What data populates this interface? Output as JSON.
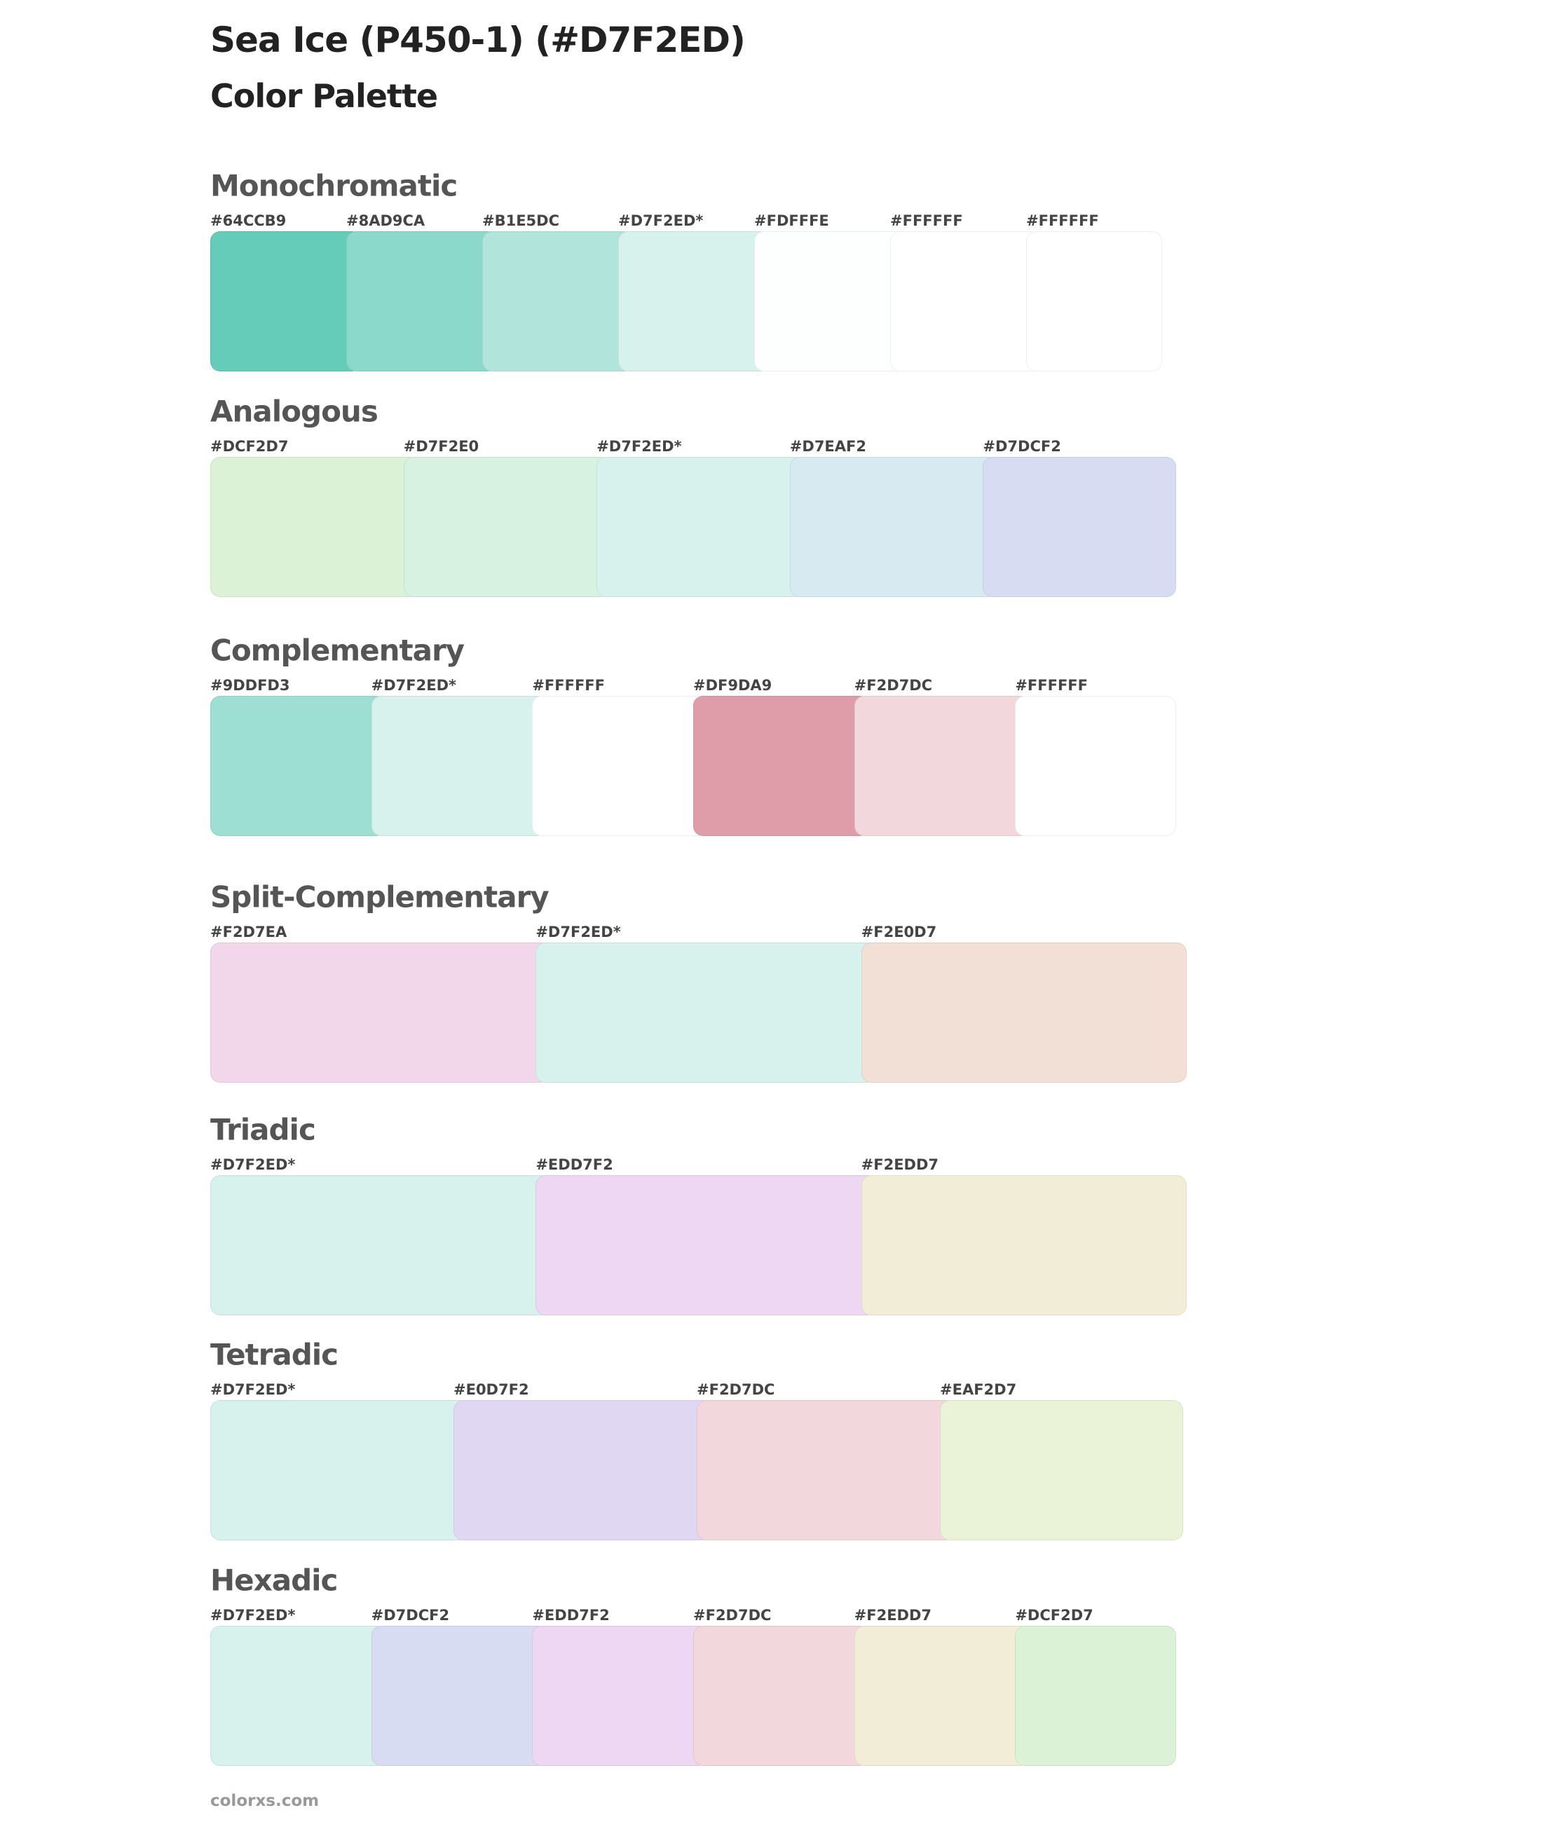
{
  "title": "Sea Ice (P450-1) (#D7F2ED)",
  "subtitle": "Color Palette",
  "sections": [
    {
      "name": "Monochromatic",
      "swatches": [
        {
          "label": "#64CCB9",
          "color": "#64CCB9"
        },
        {
          "label": "#8AD9CA",
          "color": "#8AD9CA"
        },
        {
          "label": "#B1E5DC",
          "color": "#B1E5DC"
        },
        {
          "label": "#D7F2ED*",
          "color": "#D7F2ED"
        },
        {
          "label": "#FDFFFE",
          "color": "#FDFFFE"
        },
        {
          "label": "#FFFFFF",
          "color": "#FFFFFF"
        },
        {
          "label": "#FFFFFF",
          "color": "#FFFFFF"
        }
      ]
    },
    {
      "name": "Analogous",
      "swatches": [
        {
          "label": "#DCF2D7",
          "color": "#DCF2D7"
        },
        {
          "label": "#D7F2E0",
          "color": "#D7F2E0"
        },
        {
          "label": "#D7F2ED*",
          "color": "#D7F2ED"
        },
        {
          "label": "#D7EAF2",
          "color": "#D7EAF2"
        },
        {
          "label": "#D7DCF2",
          "color": "#D7DCF2"
        }
      ]
    },
    {
      "name": "Complementary",
      "swatches": [
        {
          "label": "#9DDFD3",
          "color": "#9DDFD3"
        },
        {
          "label": "#D7F2ED*",
          "color": "#D7F2ED"
        },
        {
          "label": "#FFFFFF",
          "color": "#FFFFFF"
        },
        {
          "label": "#DF9DA9",
          "color": "#DF9DA9"
        },
        {
          "label": "#F2D7DC",
          "color": "#F2D7DC"
        },
        {
          "label": "#FFFFFF",
          "color": "#FFFFFF"
        }
      ]
    },
    {
      "name": "Split-Complementary",
      "swatches": [
        {
          "label": "#F2D7EA",
          "color": "#F2D7EA"
        },
        {
          "label": "#D7F2ED*",
          "color": "#D7F2ED"
        },
        {
          "label": "#F2E0D7",
          "color": "#F2E0D7"
        }
      ]
    },
    {
      "name": "Triadic",
      "swatches": [
        {
          "label": "#D7F2ED*",
          "color": "#D7F2ED"
        },
        {
          "label": "#EDD7F2",
          "color": "#EDD7F2"
        },
        {
          "label": "#F2EDD7",
          "color": "#F2EDD7"
        }
      ]
    },
    {
      "name": "Tetradic",
      "swatches": [
        {
          "label": "#D7F2ED*",
          "color": "#D7F2ED"
        },
        {
          "label": "#E0D7F2",
          "color": "#E0D7F2"
        },
        {
          "label": "#F2D7DC",
          "color": "#F2D7DC"
        },
        {
          "label": "#EAF2D7",
          "color": "#EAF2D7"
        }
      ]
    },
    {
      "name": "Hexadic",
      "swatches": [
        {
          "label": "#D7F2ED*",
          "color": "#D7F2ED"
        },
        {
          "label": "#D7DCF2",
          "color": "#D7DCF2"
        },
        {
          "label": "#EDD7F2",
          "color": "#EDD7F2"
        },
        {
          "label": "#F2D7DC",
          "color": "#F2D7DC"
        },
        {
          "label": "#F2EDD7",
          "color": "#F2EDD7"
        },
        {
          "label": "#DCF2D7",
          "color": "#DCF2D7"
        }
      ]
    }
  ],
  "footer": "colorxs.com"
}
